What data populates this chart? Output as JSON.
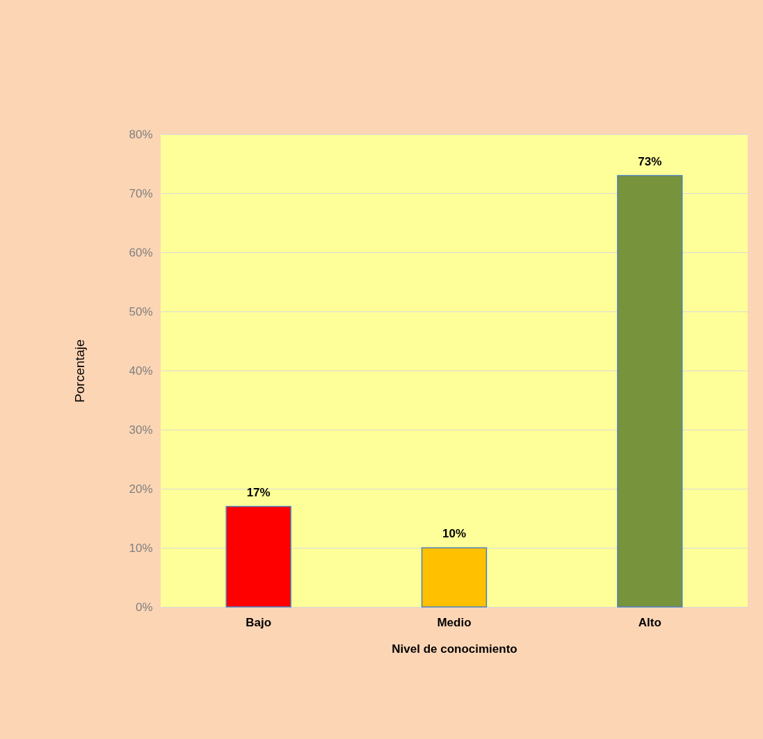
{
  "chart_data": {
    "type": "bar",
    "xlabel": "Nivel de conocimiento",
    "ylabel": "Porcentaje",
    "categories": [
      "Bajo",
      "Medio",
      "Alto"
    ],
    "values": [
      17,
      10,
      73
    ],
    "colors": [
      "#ff0000",
      "#ffc000",
      "#77933c"
    ],
    "value_labels": [
      "17%",
      "10%",
      "73%"
    ],
    "ylim": [
      0,
      80
    ],
    "yticks": [
      {
        "value": 0,
        "label": "0%"
      },
      {
        "value": 10,
        "label": "10%"
      },
      {
        "value": 20,
        "label": "20%"
      },
      {
        "value": 30,
        "label": "30%"
      },
      {
        "value": 40,
        "label": "40%"
      },
      {
        "value": 50,
        "label": "50%"
      },
      {
        "value": 60,
        "label": "60%"
      },
      {
        "value": 70,
        "label": "70%"
      },
      {
        "value": 80,
        "label": "80%"
      }
    ],
    "grid": "y",
    "legend": false
  }
}
